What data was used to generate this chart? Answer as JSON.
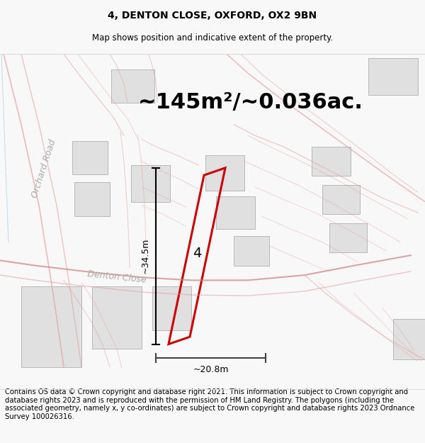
{
  "title_line1": "4, DENTON CLOSE, OXFORD, OX2 9BN",
  "title_line2": "Map shows position and indicative extent of the property.",
  "area_text": "~145m²/~0.036ac.",
  "label_number": "4",
  "dim_vertical": "~34.5m",
  "dim_horizontal": "~20.8m",
  "footer_text": "Contains OS data © Crown copyright and database right 2021. This information is subject to Crown copyright and database rights 2023 and is reproduced with the permission of HM Land Registry. The polygons (including the associated geometry, namely x, y co-ordinates) are subject to Crown copyright and database rights 2023 Ordnance Survey 100026316.",
  "bg_color": "#f8f8f8",
  "map_bg": "#ffffff",
  "road_color": "#e8a0a0",
  "road_color2": "#d08080",
  "building_fc": "#e0e0e0",
  "building_ec": "#b8b8b8",
  "property_color": "#cc0000",
  "road_label_color": "#aaaaaa",
  "orchard_road_color": "#c0c0c0",
  "denton_close_color": "#c0c0c0",
  "title_fontsize": 10,
  "subtitle_fontsize": 8.5,
  "area_fontsize": 22,
  "footer_fontsize": 7.2,
  "dim_fontsize": 9,
  "number_fontsize": 14,
  "road_label_fontsize": 9
}
